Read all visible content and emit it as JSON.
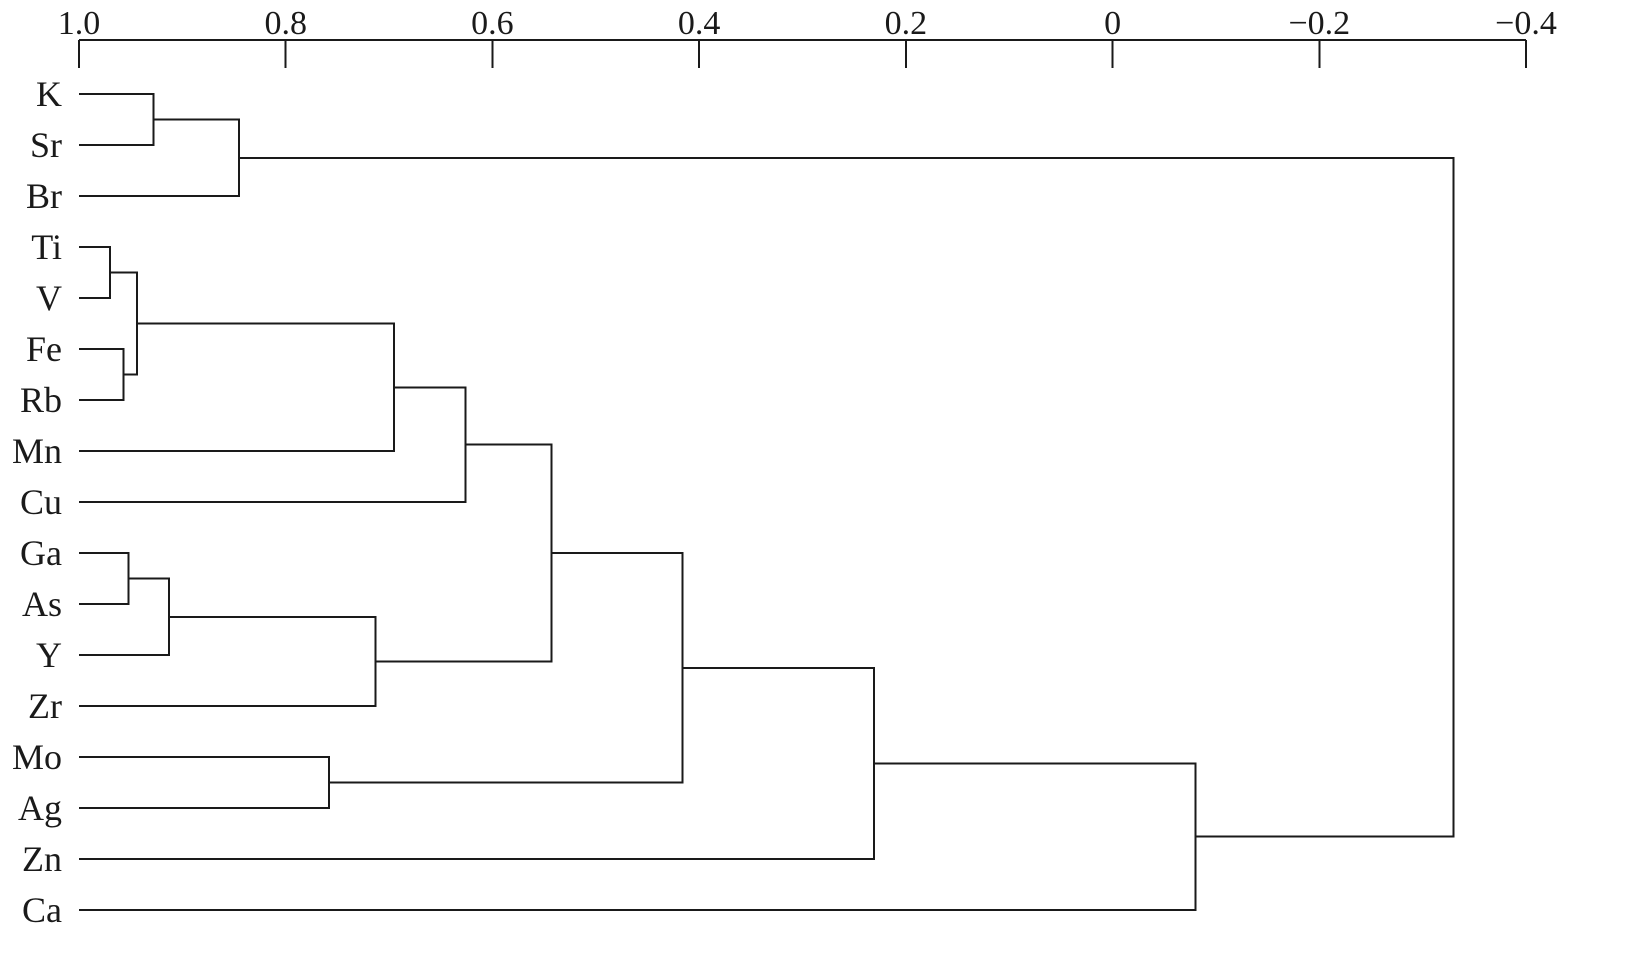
{
  "chart_data": {
    "type": "dendrogram",
    "title": "",
    "xlabel": "",
    "ylabel": "",
    "axis": {
      "position": "top",
      "range": [
        1.0,
        -0.4
      ],
      "ticks": [
        1.0,
        0.8,
        0.6,
        0.4,
        0.2,
        0,
        -0.2,
        -0.4
      ],
      "tick_labels": [
        "1.0",
        "0.8",
        "0.6",
        "0.4",
        "0.2",
        "0",
        "−0.2",
        "−0.4"
      ]
    },
    "leaves": [
      "K",
      "Sr",
      "Br",
      "Ti",
      "V",
      "Fe",
      "Rb",
      "Mn",
      "Cu",
      "Ga",
      "As",
      "Y",
      "Zr",
      "Mo",
      "Ag",
      "Zn",
      "Ca"
    ],
    "merges": [
      {
        "id": "m1",
        "children": [
          "Ti",
          "V"
        ],
        "value": 0.97
      },
      {
        "id": "m2",
        "children": [
          "Fe",
          "Rb"
        ],
        "value": 0.957
      },
      {
        "id": "m3",
        "children": [
          "m1",
          "m2"
        ],
        "value": 0.944
      },
      {
        "id": "m4",
        "children": [
          "Ga",
          "As"
        ],
        "value": 0.952
      },
      {
        "id": "m5",
        "children": [
          "K",
          "Sr"
        ],
        "value": 0.928
      },
      {
        "id": "m6",
        "children": [
          "m4",
          "Y"
        ],
        "value": 0.913
      },
      {
        "id": "m7",
        "children": [
          "m5",
          "Br"
        ],
        "value": 0.845
      },
      {
        "id": "m8",
        "children": [
          "Mo",
          "Ag"
        ],
        "value": 0.758
      },
      {
        "id": "m9",
        "children": [
          "m6",
          "Zr"
        ],
        "value": 0.713
      },
      {
        "id": "m10",
        "children": [
          "m3",
          "Mn"
        ],
        "value": 0.695
      },
      {
        "id": "m11",
        "children": [
          "m10",
          "Cu"
        ],
        "value": 0.626
      },
      {
        "id": "m12",
        "children": [
          "m11",
          "m9"
        ],
        "value": 0.543
      },
      {
        "id": "m13",
        "children": [
          "m12",
          "m8"
        ],
        "value": 0.416
      },
      {
        "id": "m14",
        "children": [
          "m13",
          "Zn"
        ],
        "value": 0.231
      },
      {
        "id": "m15",
        "children": [
          "m14",
          "Ca"
        ],
        "value": -0.08
      },
      {
        "id": "m16",
        "children": [
          "m7",
          "m15"
        ],
        "value": -0.33
      }
    ]
  }
}
